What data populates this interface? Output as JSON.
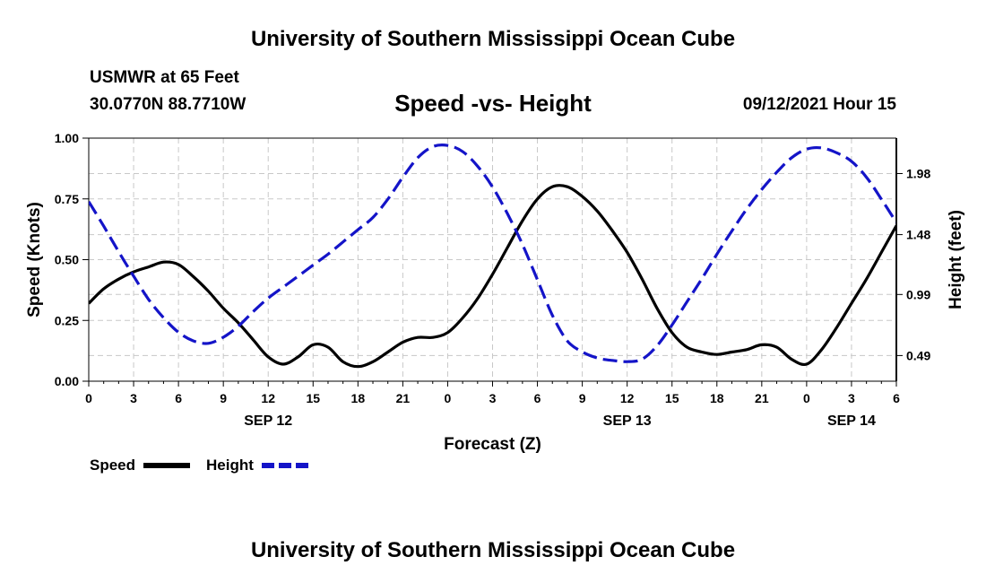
{
  "header": {
    "title": "University of Southern Mississippi Ocean Cube",
    "station": "USMWR at 65 Feet",
    "coords": "30.0770N  88.7710W",
    "subtitle": "Speed -vs- Height",
    "datetime": "09/12/2021 Hour 15"
  },
  "footer": {
    "title": "University of Southern Mississippi Ocean Cube"
  },
  "legend": {
    "speed_label": "Speed",
    "height_label": "Height"
  },
  "colors": {
    "speed": "#000000",
    "height": "#1414c8",
    "grid": "#c8c8c8"
  },
  "chart_data": {
    "type": "line",
    "title": "Speed -vs- Height",
    "xlabel": "Forecast (Z)",
    "ylabel_left": "Speed (Knots)",
    "ylabel_right": "Height (feet)",
    "x_range_hours": [
      0,
      54
    ],
    "y_left_range": [
      0,
      1.0
    ],
    "y_right_range": [
      0.28,
      2.27
    ],
    "y_left_ticks": [
      "0.00",
      "0.25",
      "0.50",
      "0.75",
      "1.00"
    ],
    "y_left_tick_values": [
      0,
      0.25,
      0.5,
      0.75,
      1.0
    ],
    "y_right_ticks": [
      "0.49",
      "0.99",
      "1.48",
      "1.98"
    ],
    "y_right_tick_values": [
      0.49,
      0.99,
      1.48,
      1.98
    ],
    "x_ticks": [
      "0",
      "3",
      "6",
      "9",
      "12",
      "15",
      "18",
      "21",
      "0",
      "3",
      "6",
      "9",
      "12",
      "15",
      "18",
      "21",
      "0",
      "3",
      "6"
    ],
    "date_labels": [
      {
        "text": "SEP 12",
        "hour": 12
      },
      {
        "text": "SEP 13",
        "hour": 36
      },
      {
        "text": "SEP 14",
        "hour": 51
      }
    ],
    "grid": true,
    "series": [
      {
        "name": "Speed",
        "axis": "left",
        "style": "solid",
        "x": [
          0,
          1,
          2,
          3,
          4,
          5,
          6,
          7,
          8,
          9,
          10,
          11,
          12,
          13,
          14,
          15,
          16,
          17,
          18,
          19,
          20,
          21,
          22,
          23,
          24,
          25,
          26,
          27,
          28,
          29,
          30,
          31,
          32,
          33,
          34,
          35,
          36,
          37,
          38,
          39,
          40,
          41,
          42,
          43,
          44,
          45,
          46,
          47,
          48,
          49,
          50,
          51,
          52,
          53,
          54
        ],
        "values": [
          0.32,
          0.38,
          0.42,
          0.45,
          0.47,
          0.49,
          0.48,
          0.43,
          0.37,
          0.3,
          0.24,
          0.17,
          0.1,
          0.07,
          0.1,
          0.15,
          0.14,
          0.08,
          0.06,
          0.08,
          0.12,
          0.16,
          0.18,
          0.18,
          0.2,
          0.26,
          0.34,
          0.44,
          0.55,
          0.66,
          0.75,
          0.8,
          0.8,
          0.76,
          0.7,
          0.62,
          0.53,
          0.42,
          0.3,
          0.2,
          0.14,
          0.12,
          0.11,
          0.12,
          0.13,
          0.15,
          0.14,
          0.09,
          0.07,
          0.13,
          0.22,
          0.32,
          0.42,
          0.53,
          0.64
        ]
      },
      {
        "name": "Height",
        "axis": "right",
        "style": "dashed",
        "x": [
          0,
          1,
          2,
          3,
          4,
          5,
          6,
          7,
          8,
          9,
          10,
          11,
          12,
          13,
          14,
          15,
          16,
          17,
          18,
          19,
          20,
          21,
          22,
          23,
          24,
          25,
          26,
          27,
          28,
          29,
          30,
          31,
          32,
          33,
          34,
          35,
          36,
          37,
          38,
          39,
          40,
          41,
          42,
          43,
          44,
          45,
          46,
          47,
          48,
          49,
          50,
          51,
          52,
          53,
          54
        ],
        "values": [
          1.75,
          1.55,
          1.34,
          1.14,
          0.95,
          0.8,
          0.68,
          0.61,
          0.59,
          0.64,
          0.73,
          0.85,
          0.96,
          1.05,
          1.14,
          1.23,
          1.32,
          1.42,
          1.52,
          1.62,
          1.77,
          1.95,
          2.11,
          2.2,
          2.21,
          2.16,
          2.04,
          1.87,
          1.65,
          1.4,
          1.11,
          0.82,
          0.61,
          0.52,
          0.47,
          0.45,
          0.44,
          0.46,
          0.57,
          0.74,
          0.93,
          1.12,
          1.32,
          1.51,
          1.69,
          1.85,
          1.99,
          2.11,
          2.18,
          2.19,
          2.15,
          2.08,
          1.95,
          1.77,
          1.58
        ]
      }
    ]
  }
}
